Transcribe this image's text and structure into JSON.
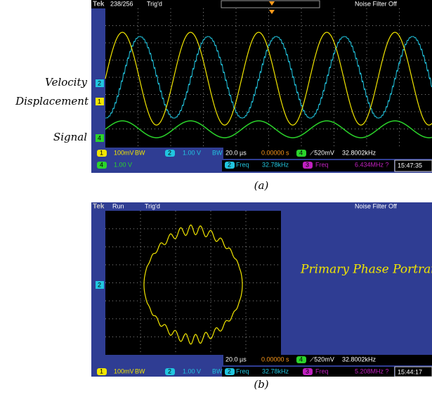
{
  "figure_a": {
    "status": {
      "brand": "Tek",
      "acquisition": "238/256",
      "trigger_state": "Trig'd",
      "filter": "Noise Filter Off"
    },
    "trace_labels": {
      "velocity": "Velocity",
      "displacement": "Displacement",
      "signal": "Signal"
    },
    "markers": {
      "ch2": "2",
      "ch1": "1",
      "ch4": "4"
    },
    "readout": {
      "ch1": "1",
      "ch1_scale": "100mV",
      "ch1_bw": "BW",
      "ch2": "2",
      "ch2_scale": "1.00 V",
      "ch2_bw": "BW",
      "timebase": "20.0 µs",
      "delay": "0.00000 s",
      "trig_ch": "4",
      "trig_level": "⟋520mV",
      "trig_freq": "32.8002kHz",
      "ch4": "4",
      "ch4_scale": "1.00 V",
      "meas1_ch": "2",
      "meas1_name": "Freq",
      "meas1_value": "32.78kHz",
      "meas2_ch": "3",
      "meas2_name": "Freq",
      "meas2_value": "6.434MHz ?",
      "time": "15:47:35"
    },
    "caption": "(a)"
  },
  "figure_b": {
    "status": {
      "brand": "Tek",
      "run_state": "Run",
      "trigger_state": "Trig'd",
      "filter": "Noise Filter Off"
    },
    "marker": "2",
    "annotation": "Primary Phase Portrait",
    "readout": {
      "timebase": "20.0 µs",
      "delay": "0.00000 s",
      "trig_ch": "4",
      "trig_level": "⟋520mV",
      "trig_freq": "32.8002kHz",
      "ch1": "1",
      "ch1_scale": "100mV",
      "ch1_bw": "BW",
      "ch2": "2",
      "ch2_scale": "1.00 V",
      "ch2_bw": "BW",
      "meas1_ch": "2",
      "meas1_name": "Freq",
      "meas1_value": "32.78kHz",
      "meas2_ch": "3",
      "meas2_name": "Freq",
      "meas2_value": "5.208MHz ?",
      "time": "15:44:17"
    },
    "caption": "(b)"
  }
}
